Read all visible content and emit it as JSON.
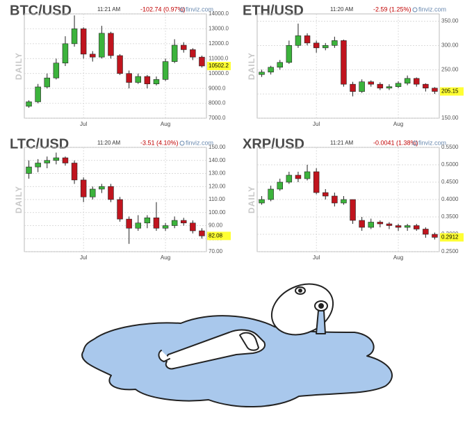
{
  "chart_data": [
    {
      "type": "candlestick",
      "title": "BTC/USD",
      "time": "11:21 AM",
      "change": "-102.74 (0.97%)",
      "source": "finviz.com",
      "period": "DAILY",
      "x": [
        null,
        null,
        null,
        null,
        null,
        null,
        "Jul",
        null,
        null,
        null,
        null,
        null,
        null,
        null,
        null,
        "Aug",
        null,
        null,
        null,
        null
      ],
      "open": [
        7800,
        8100,
        9100,
        9700,
        10700,
        12000,
        13000,
        11300,
        11100,
        12700,
        11200,
        10000,
        9400,
        9800,
        9300,
        9600,
        10800,
        11900,
        11600,
        11100
      ],
      "high": [
        8200,
        9300,
        10000,
        11000,
        12500,
        13900,
        13100,
        11500,
        13200,
        12800,
        11300,
        10200,
        10000,
        9900,
        9800,
        11000,
        12300,
        12100,
        11700,
        11200
      ],
      "low": [
        7700,
        8000,
        9000,
        9600,
        10500,
        11800,
        11000,
        10800,
        11000,
        11000,
        9900,
        9000,
        9300,
        9000,
        9200,
        9500,
        10700,
        11400,
        10900,
        10400
      ],
      "close": [
        8100,
        9100,
        9700,
        10700,
        12000,
        13000,
        11300,
        11100,
        12700,
        11200,
        10000,
        9400,
        9800,
        9300,
        9600,
        10800,
        11900,
        11600,
        11100,
        10502.2
      ],
      "up_color": "#3cb33c",
      "down_color": "#c0141e",
      "grid": true,
      "ylim": [
        7000,
        14000
      ],
      "yticks": [
        {
          "value": 7000,
          "label": "7000.0"
        },
        {
          "value": 8000,
          "label": "8000.0"
        },
        {
          "value": 9000,
          "label": "9000.0"
        },
        {
          "value": 10000,
          "label": "10000.0"
        },
        {
          "value": 11000,
          "label": "11000.0"
        },
        {
          "value": 12000,
          "label": "12000.0"
        },
        {
          "value": 13000,
          "label": "13000.0"
        },
        {
          "value": 14000,
          "label": "14000.0"
        }
      ]
    },
    {
      "type": "candlestick",
      "title": "ETH/USD",
      "time": "11:20 AM",
      "change": "-2.59 (1.25%)",
      "source": "finviz.com",
      "period": "DAILY",
      "x": [
        null,
        null,
        null,
        null,
        null,
        null,
        "Jul",
        null,
        null,
        null,
        null,
        null,
        null,
        null,
        null,
        "Aug",
        null,
        null,
        null,
        null
      ],
      "open": [
        240,
        245,
        255,
        265,
        300,
        320,
        305,
        295,
        300,
        310,
        220,
        205,
        225,
        220,
        212,
        215,
        222,
        232,
        220,
        212
      ],
      "high": [
        250,
        258,
        270,
        310,
        345,
        325,
        310,
        305,
        318,
        312,
        225,
        230,
        228,
        224,
        220,
        226,
        238,
        234,
        222,
        214
      ],
      "low": [
        235,
        240,
        250,
        262,
        295,
        300,
        285,
        290,
        295,
        215,
        195,
        202,
        215,
        208,
        208,
        212,
        218,
        215,
        205,
        200
      ],
      "close": [
        245,
        255,
        265,
        300,
        320,
        305,
        295,
        300,
        310,
        220,
        205,
        225,
        220,
        212,
        215,
        222,
        232,
        220,
        212,
        205.15
      ],
      "up_color": "#3cb33c",
      "down_color": "#c0141e",
      "grid": true,
      "ylim": [
        150,
        365
      ],
      "yticks": [
        {
          "value": 150,
          "label": "150.00"
        },
        {
          "value": 200,
          "label": "200.00"
        },
        {
          "value": 250,
          "label": "250.00"
        },
        {
          "value": 300,
          "label": "300.00"
        },
        {
          "value": 350,
          "label": "350.00"
        }
      ]
    },
    {
      "type": "candlestick",
      "title": "LTC/USD",
      "time": "11:20 AM",
      "change": "-3.51 (4.10%)",
      "source": "finviz.com",
      "period": "DAILY",
      "x": [
        null,
        null,
        null,
        null,
        null,
        null,
        "Jul",
        null,
        null,
        null,
        null,
        null,
        null,
        null,
        null,
        "Aug",
        null,
        null,
        null,
        null
      ],
      "open": [
        130,
        135,
        138,
        140,
        142,
        138,
        125,
        112,
        118,
        120,
        110,
        95,
        88,
        92,
        96,
        88,
        90,
        94,
        92,
        86
      ],
      "high": [
        140,
        141,
        143,
        146,
        143,
        140,
        127,
        120,
        122,
        122,
        112,
        97,
        98,
        98,
        108,
        92,
        97,
        96,
        94,
        88
      ],
      "low": [
        126,
        131,
        134,
        137,
        136,
        122,
        108,
        110,
        115,
        108,
        93,
        76,
        86,
        88,
        86,
        86,
        88,
        90,
        84,
        80
      ],
      "close": [
        135,
        138,
        140,
        142,
        138,
        125,
        112,
        118,
        120,
        110,
        95,
        88,
        92,
        96,
        88,
        90,
        94,
        92,
        86,
        82.08
      ],
      "up_color": "#3cb33c",
      "down_color": "#c0141e",
      "grid": true,
      "ylim": [
        70,
        150
      ],
      "yticks": [
        {
          "value": 70,
          "label": "70.00"
        },
        {
          "value": 80,
          "label": "80.00"
        },
        {
          "value": 90,
          "label": "90.00"
        },
        {
          "value": 100,
          "label": "100.00"
        },
        {
          "value": 110,
          "label": "110.00"
        },
        {
          "value": 120,
          "label": "120.00"
        },
        {
          "value": 130,
          "label": "130.00"
        },
        {
          "value": 140,
          "label": "140.00"
        },
        {
          "value": 150,
          "label": "150.00"
        }
      ]
    },
    {
      "type": "candlestick",
      "title": "XRP/USD",
      "time": "11:21 AM",
      "change": "-0.0041 (1.38%)",
      "source": "finviz.com",
      "period": "DAILY",
      "x": [
        null,
        null,
        null,
        null,
        null,
        null,
        "Jul",
        null,
        null,
        null,
        null,
        null,
        null,
        null,
        null,
        "Aug",
        null,
        null,
        null,
        null
      ],
      "open": [
        0.39,
        0.4,
        0.43,
        0.45,
        0.47,
        0.46,
        0.48,
        0.42,
        0.41,
        0.39,
        0.4,
        0.34,
        0.32,
        0.335,
        0.33,
        0.325,
        0.32,
        0.325,
        0.315,
        0.3
      ],
      "high": [
        0.41,
        0.44,
        0.46,
        0.48,
        0.48,
        0.5,
        0.49,
        0.43,
        0.42,
        0.41,
        0.4,
        0.35,
        0.345,
        0.34,
        0.335,
        0.33,
        0.33,
        0.33,
        0.32,
        0.305
      ],
      "low": [
        0.385,
        0.395,
        0.425,
        0.445,
        0.45,
        0.455,
        0.415,
        0.4,
        0.38,
        0.385,
        0.33,
        0.31,
        0.315,
        0.32,
        0.315,
        0.31,
        0.31,
        0.31,
        0.29,
        0.285
      ],
      "close": [
        0.4,
        0.43,
        0.45,
        0.47,
        0.46,
        0.48,
        0.42,
        0.41,
        0.39,
        0.4,
        0.34,
        0.32,
        0.335,
        0.33,
        0.325,
        0.32,
        0.325,
        0.315,
        0.3,
        0.2912
      ],
      "up_color": "#3cb33c",
      "down_color": "#c0141e",
      "grid": true,
      "ylim": [
        0.25,
        0.55
      ],
      "yticks": [
        {
          "value": 0.25,
          "label": "0.2500"
        },
        {
          "value": 0.3,
          "label": "0.3000"
        },
        {
          "value": 0.35,
          "label": "0.3500"
        },
        {
          "value": 0.4,
          "label": "0.4000"
        },
        {
          "value": 0.45,
          "label": "0.4500"
        },
        {
          "value": 0.5,
          "label": "0.5000"
        },
        {
          "value": 0.55,
          "label": "0.5500"
        }
      ]
    }
  ]
}
